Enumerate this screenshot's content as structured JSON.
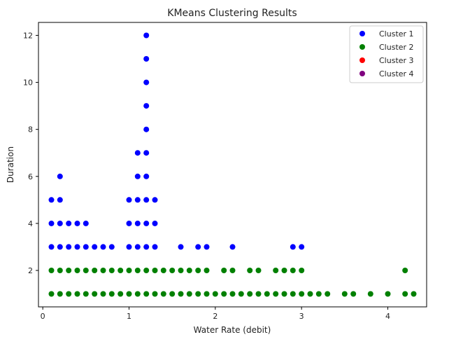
{
  "chart_data": {
    "type": "scatter",
    "title": "KMeans Clustering Results",
    "xlabel": "Water Rate (debit)",
    "ylabel": "Duration",
    "xlim": [
      -0.05,
      4.45
    ],
    "ylim": [
      0.45,
      12.55
    ],
    "xticks": [
      0,
      1,
      2,
      3,
      4
    ],
    "yticks": [
      2,
      4,
      6,
      8,
      10,
      12
    ],
    "grid": false,
    "legend_position": "top-right",
    "series": [
      {
        "name": "Cluster 1",
        "color": "#0000ff",
        "points": [
          [
            0.1,
            3
          ],
          [
            0.1,
            4
          ],
          [
            0.1,
            5
          ],
          [
            0.2,
            3
          ],
          [
            0.2,
            4
          ],
          [
            0.2,
            5
          ],
          [
            0.2,
            6
          ],
          [
            0.3,
            3
          ],
          [
            0.3,
            4
          ],
          [
            0.4,
            3
          ],
          [
            0.4,
            4
          ],
          [
            0.5,
            3
          ],
          [
            0.5,
            4
          ],
          [
            0.6,
            3
          ],
          [
            0.7,
            3
          ],
          [
            0.8,
            3
          ],
          [
            1.0,
            3
          ],
          [
            1.0,
            4
          ],
          [
            1.0,
            5
          ],
          [
            1.1,
            3
          ],
          [
            1.1,
            4
          ],
          [
            1.1,
            5
          ],
          [
            1.1,
            6
          ],
          [
            1.1,
            7
          ],
          [
            1.2,
            3
          ],
          [
            1.2,
            4
          ],
          [
            1.2,
            5
          ],
          [
            1.2,
            6
          ],
          [
            1.2,
            7
          ],
          [
            1.2,
            8
          ],
          [
            1.2,
            9
          ],
          [
            1.2,
            10
          ],
          [
            1.2,
            11
          ],
          [
            1.2,
            12
          ],
          [
            1.3,
            3
          ],
          [
            1.3,
            4
          ],
          [
            1.3,
            5
          ],
          [
            1.6,
            3
          ],
          [
            1.8,
            3
          ],
          [
            1.9,
            3
          ],
          [
            2.2,
            3
          ],
          [
            2.9,
            3
          ],
          [
            3.0,
            3
          ]
        ]
      },
      {
        "name": "Cluster 2",
        "color": "#008000",
        "points": [
          [
            0.1,
            1
          ],
          [
            0.1,
            2
          ],
          [
            0.2,
            1
          ],
          [
            0.2,
            2
          ],
          [
            0.3,
            1
          ],
          [
            0.3,
            2
          ],
          [
            0.4,
            1
          ],
          [
            0.4,
            2
          ],
          [
            0.5,
            1
          ],
          [
            0.5,
            2
          ],
          [
            0.6,
            1
          ],
          [
            0.6,
            2
          ],
          [
            0.7,
            1
          ],
          [
            0.7,
            2
          ],
          [
            0.8,
            1
          ],
          [
            0.8,
            2
          ],
          [
            0.9,
            1
          ],
          [
            0.9,
            2
          ],
          [
            1.0,
            1
          ],
          [
            1.0,
            2
          ],
          [
            1.1,
            1
          ],
          [
            1.1,
            2
          ],
          [
            1.2,
            1
          ],
          [
            1.2,
            2
          ],
          [
            1.3,
            1
          ],
          [
            1.3,
            2
          ],
          [
            1.4,
            1
          ],
          [
            1.4,
            2
          ],
          [
            1.5,
            1
          ],
          [
            1.5,
            2
          ],
          [
            1.6,
            1
          ],
          [
            1.6,
            2
          ],
          [
            1.7,
            1
          ],
          [
            1.7,
            2
          ],
          [
            1.8,
            1
          ],
          [
            1.8,
            2
          ],
          [
            1.9,
            1
          ],
          [
            1.9,
            2
          ],
          [
            2.0,
            1
          ],
          [
            2.1,
            1
          ],
          [
            2.1,
            2
          ],
          [
            2.2,
            1
          ],
          [
            2.2,
            2
          ],
          [
            2.3,
            1
          ],
          [
            2.4,
            1
          ],
          [
            2.4,
            2
          ],
          [
            2.5,
            1
          ],
          [
            2.5,
            2
          ],
          [
            2.6,
            1
          ],
          [
            2.7,
            1
          ],
          [
            2.7,
            2
          ],
          [
            2.8,
            1
          ],
          [
            2.8,
            2
          ],
          [
            2.9,
            1
          ],
          [
            2.9,
            2
          ],
          [
            3.0,
            1
          ],
          [
            3.0,
            2
          ],
          [
            3.1,
            1
          ],
          [
            3.2,
            1
          ],
          [
            3.3,
            1
          ],
          [
            3.5,
            1
          ],
          [
            3.6,
            1
          ],
          [
            3.8,
            1
          ],
          [
            4.0,
            1
          ],
          [
            4.2,
            1
          ],
          [
            4.2,
            2
          ],
          [
            4.3,
            1
          ]
        ]
      },
      {
        "name": "Cluster 3",
        "color": "#ff0000",
        "points": []
      },
      {
        "name": "Cluster 4",
        "color": "#800080",
        "points": []
      }
    ]
  }
}
